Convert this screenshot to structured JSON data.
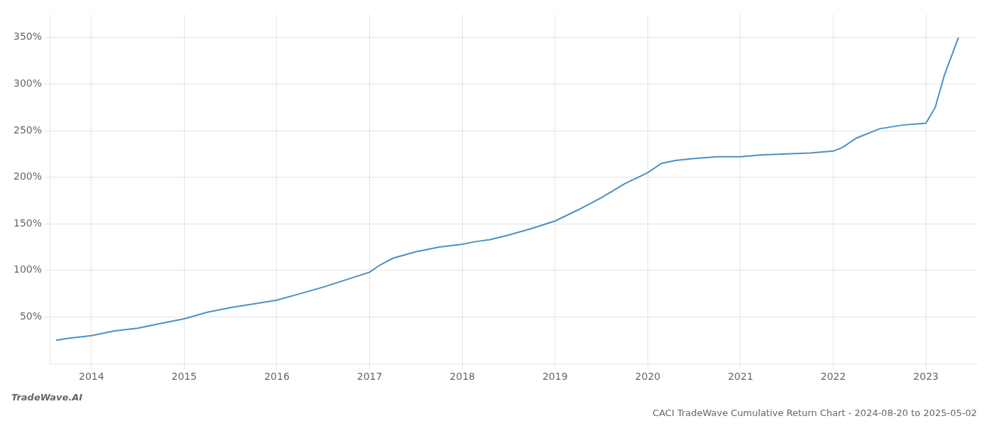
{
  "chart_data": {
    "type": "line",
    "title": "CACI TradeWave Cumulative Return Chart - 2024-08-20 to 2025-05-02",
    "subtitle": "TradeWave.AI",
    "x": [
      2013.62,
      2013.75,
      2014.0,
      2014.25,
      2014.5,
      2014.75,
      2015.0,
      2015.25,
      2015.5,
      2015.75,
      2016.0,
      2016.25,
      2016.5,
      2016.75,
      2017.0,
      2017.1,
      2017.25,
      2017.5,
      2017.75,
      2018.0,
      2018.15,
      2018.3,
      2018.5,
      2018.75,
      2019.0,
      2019.25,
      2019.5,
      2019.75,
      2020.0,
      2020.15,
      2020.3,
      2020.5,
      2020.75,
      2021.0,
      2021.25,
      2021.5,
      2021.75,
      2022.0,
      2022.1,
      2022.25,
      2022.5,
      2022.75,
      2023.0,
      2023.1,
      2023.2,
      2023.35
    ],
    "values": [
      25,
      27,
      30,
      35,
      38,
      43,
      48,
      55,
      60,
      64,
      68,
      75,
      82,
      90,
      98,
      105,
      113,
      120,
      125,
      128,
      131,
      133,
      138,
      145,
      153,
      165,
      178,
      193,
      205,
      215,
      218,
      220,
      222,
      222,
      224,
      225,
      226,
      228,
      232,
      242,
      252,
      256,
      258,
      275,
      310,
      350
    ],
    "color": "#4a90c4",
    "xlim": [
      2013.55,
      2023.55
    ],
    "xticks": [
      2014,
      2015,
      2016,
      2017,
      2018,
      2019,
      2020,
      2021,
      2022,
      2023
    ],
    "ylim": [
      0,
      375
    ],
    "yticks": [
      {
        "value": 50,
        "label": "50%"
      },
      {
        "value": 100,
        "label": "100%"
      },
      {
        "value": 150,
        "label": "150%"
      },
      {
        "value": 200,
        "label": "200%"
      },
      {
        "value": 250,
        "label": "250%"
      },
      {
        "value": 300,
        "label": "300%"
      },
      {
        "value": 350,
        "label": "350%"
      }
    ],
    "grid": true
  }
}
